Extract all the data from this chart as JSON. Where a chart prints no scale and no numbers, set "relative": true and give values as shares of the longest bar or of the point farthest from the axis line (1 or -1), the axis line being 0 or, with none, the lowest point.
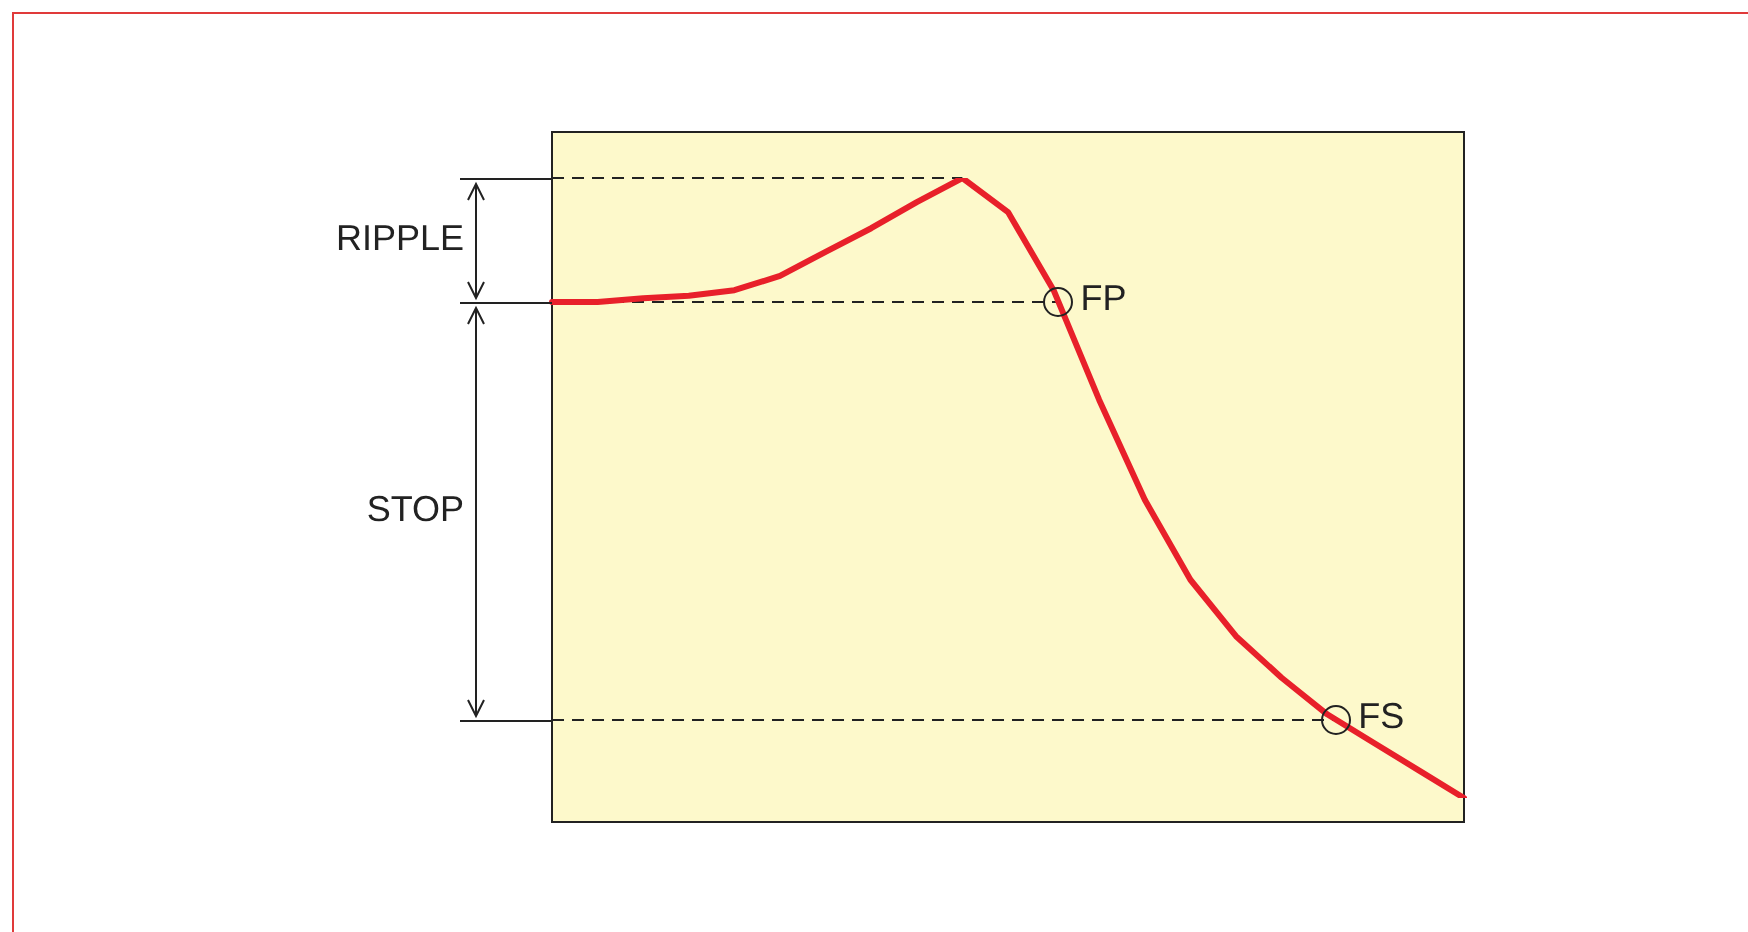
{
  "chart_data": {
    "type": "line",
    "relative": true,
    "categories": [
      null,
      null,
      null,
      null,
      null,
      null,
      null,
      null,
      null,
      null,
      null,
      null,
      null,
      null,
      null,
      null,
      null,
      null,
      null,
      null,
      null
    ],
    "series": [
      {
        "color": "#e8202a",
        "values": [
          0.8,
          0.8,
          0.806,
          0.81,
          0.819,
          0.842,
          0.881,
          0.919,
          0.961,
          1,
          0.945,
          0.819,
          0.642,
          0.481,
          0.352,
          0.261,
          0.194,
          0.135,
          0.09,
          0.045,
          0
        ]
      }
    ],
    "ref_lines": [
      {
        "axis": "y",
        "value": 1,
        "line_style": "dashed"
      },
      {
        "axis": "y",
        "value": 0.8,
        "label": "FP",
        "line_style": "dashed"
      },
      {
        "axis": "y",
        "value": 0.126,
        "label": "FS",
        "line_style": "dashed"
      }
    ],
    "annotations": [
      "RIPPLE",
      "STOP"
    ],
    "legend": false,
    "marker": "none",
    "line_style": "solid"
  }
}
